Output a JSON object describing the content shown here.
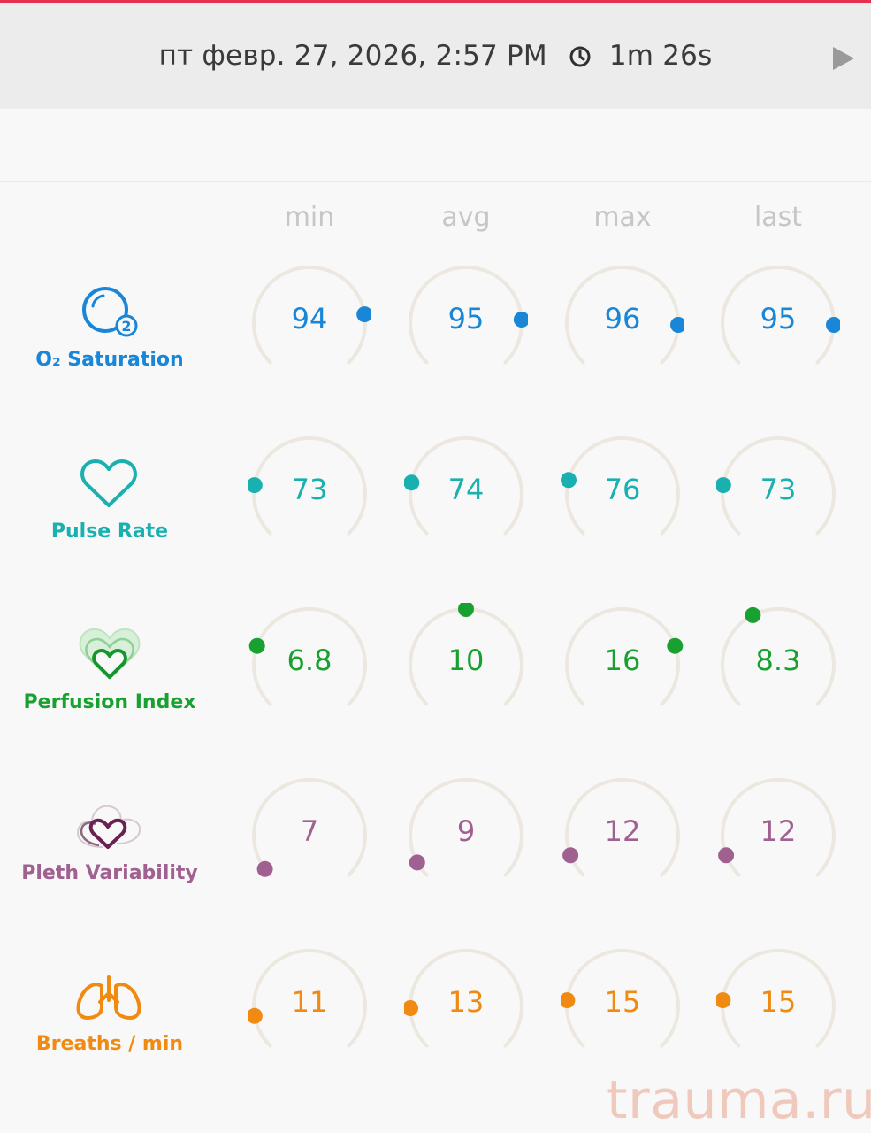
{
  "header": {
    "datetime": "пт февр. 27, 2026, 2:57 PM",
    "duration": "1m 26s",
    "clock_icon": "clock-icon",
    "play_icon": "play-icon"
  },
  "columns": [
    "min",
    "avg",
    "max",
    "last"
  ],
  "metrics": [
    {
      "key": "spo2",
      "label": "O₂ Saturation",
      "icon": "o2-icon",
      "color": "#1a86d8",
      "values": [
        "94",
        "95",
        "96",
        "95"
      ],
      "levels": [
        0.8,
        0.82,
        0.84,
        0.84
      ]
    },
    {
      "key": "pulse",
      "label": "Pulse Rate",
      "icon": "heart-icon",
      "color": "#1ab0b0",
      "values": [
        "73",
        "74",
        "76",
        "73"
      ],
      "levels": [
        0.2,
        0.21,
        0.22,
        0.2
      ]
    },
    {
      "key": "pi",
      "label": "Perfusion Index",
      "icon": "perfusion-heart-icon",
      "color": "#18a030",
      "values": [
        "6.8",
        "10",
        "16",
        "8.3"
      ],
      "levels": [
        0.24,
        0.5,
        0.76,
        0.4
      ]
    },
    {
      "key": "pvi",
      "label": "Pleth Variability",
      "icon": "pleth-heart-icon",
      "color": "#a06090",
      "values": [
        "7",
        "9",
        "12",
        "12"
      ],
      "levels": [
        0.03,
        0.06,
        0.09,
        0.09
      ]
    },
    {
      "key": "rrp",
      "label": "Breaths / min",
      "icon": "lungs-icon",
      "color": "#f08a10",
      "values": [
        "11",
        "13",
        "15",
        "15"
      ],
      "levels": [
        0.13,
        0.16,
        0.19,
        0.19
      ]
    }
  ],
  "watermark": "trauma.ru",
  "gauge_track_color": "#ece8e0"
}
